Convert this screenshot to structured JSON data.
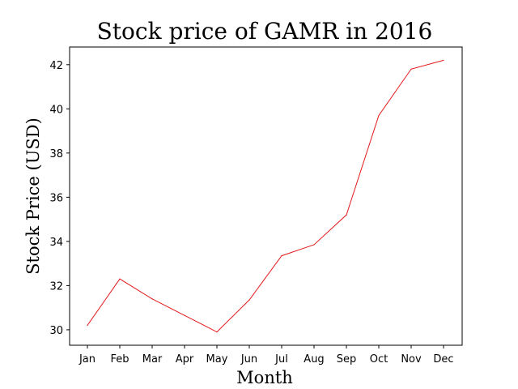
{
  "chart_data": {
    "type": "line",
    "title": "Stock price of GAMR in 2016",
    "xlabel": "Month",
    "ylabel": "Stock Price (USD)",
    "categories": [
      "Jan",
      "Feb",
      "Mar",
      "Apr",
      "May",
      "Jun",
      "Jul",
      "Aug",
      "Sep",
      "Oct",
      "Nov",
      "Dec"
    ],
    "series": [
      {
        "values": [
          30.2,
          32.3,
          31.4,
          30.65,
          29.9,
          31.35,
          33.35,
          33.85,
          35.2,
          39.7,
          41.8,
          42.2
        ],
        "color": "#e41a1c"
      }
    ],
    "yticks": [
      30,
      32,
      34,
      36,
      38,
      40,
      42
    ],
    "ylim": [
      29.3,
      42.8
    ],
    "grid": false,
    "legend": "none"
  }
}
